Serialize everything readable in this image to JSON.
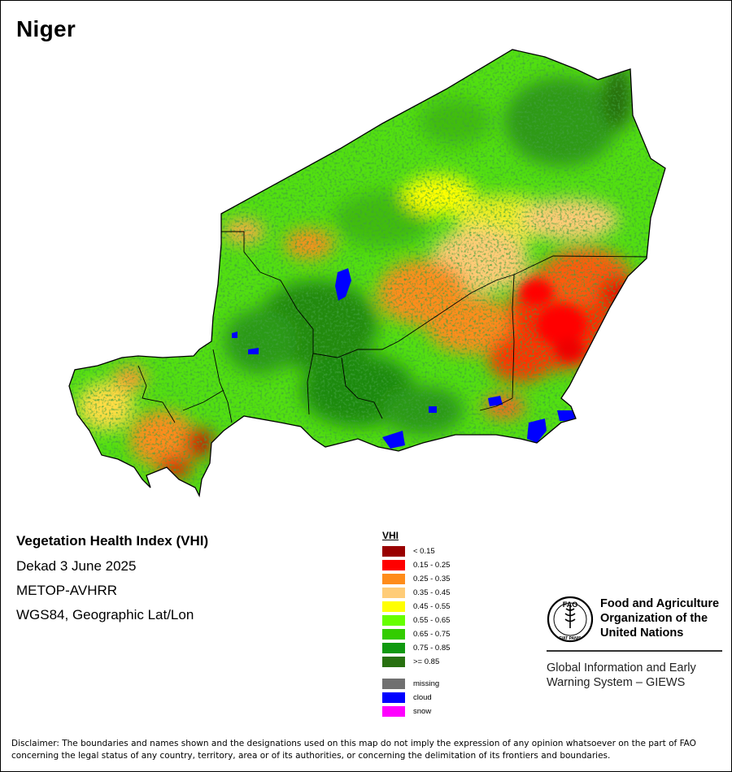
{
  "map": {
    "title": "Niger",
    "product_title": "Vegetation Health Index (VHI)",
    "period": "Dekad 3 June 2025",
    "sensor": "METOP-AVHRR",
    "projection": "WGS84, Geographic Lat/Lon"
  },
  "legend": {
    "title": "VHI",
    "classes": [
      {
        "label": "< 0.15",
        "color": "#990000"
      },
      {
        "label": "0.15 - 0.25",
        "color": "#ff0000"
      },
      {
        "label": "0.25 - 0.35",
        "color": "#ff8c1a"
      },
      {
        "label": "0.35 - 0.45",
        "color": "#ffcc77"
      },
      {
        "label": "0.45 - 0.55",
        "color": "#ffff00"
      },
      {
        "label": "0.55 - 0.65",
        "color": "#66ff00"
      },
      {
        "label": "0.65 - 0.75",
        "color": "#33cc00"
      },
      {
        "label": "0.75 - 0.85",
        "color": "#109910"
      },
      {
        "label": ">= 0.85",
        "color": "#287010"
      }
    ],
    "special": [
      {
        "label": "missing",
        "color": "#707070"
      },
      {
        "label": "cloud",
        "color": "#0000ff"
      },
      {
        "label": "snow",
        "color": "#ff00ff"
      }
    ]
  },
  "organization": {
    "name_line1": "Food and Agriculture",
    "name_line2": "Organization of the",
    "name_line3": "United Nations",
    "emblem_text": "FAO",
    "motto": "FIAT PANIS",
    "system_line1": "Global Information and Early",
    "system_line2": "Warning System – GIEWS",
    "icon": "fao-emblem-icon"
  },
  "disclaimer": "Disclaimer: The boundaries and names shown and the designations used on this map do not imply the expression of any opinion whatsoever on the part of FAO concerning the legal status of any country, territory, area or of its authorities, or concerning the delimitation of its frontiers and boundaries."
}
